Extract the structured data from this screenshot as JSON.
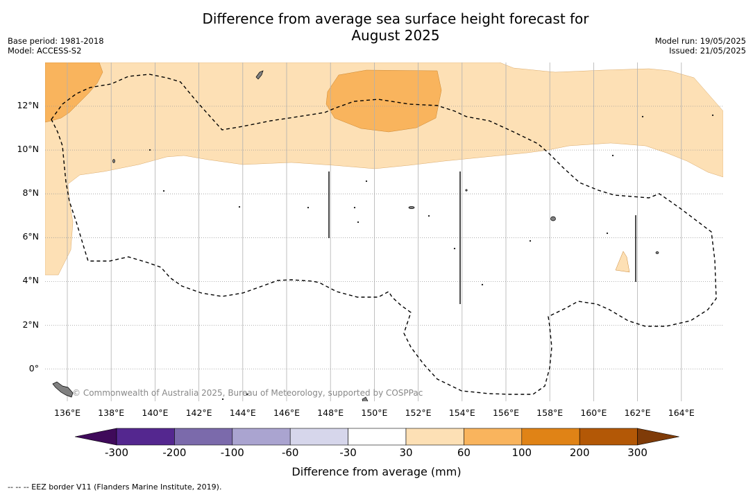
{
  "header": {
    "title_line1": "Difference from average sea surface height forecast for",
    "title_line2": "August 2025",
    "base_period": "Base period: 1981-2018",
    "model": "Model: ACCESS-S2",
    "model_run": "Model run: 19/05/2025",
    "issued": "Issued: 21/05/2025"
  },
  "map": {
    "lat_labels": [
      "12°N",
      "10°N",
      "8°N",
      "6°N",
      "4°N",
      "2°N",
      "0°"
    ],
    "lon_labels": [
      "136°E",
      "138°E",
      "140°E",
      "142°E",
      "144°E",
      "146°E",
      "148°E",
      "150°E",
      "152°E",
      "154°E",
      "156°E",
      "158°E",
      "160°E",
      "162°E",
      "164°E"
    ],
    "credit": "© Commonwealth of Australia 2025, Bureau of Meteorology, supported by COSPPac",
    "ocean_color": "#ffffff",
    "land_color": "#808080"
  },
  "colorbar": {
    "label": "Difference from average (mm)",
    "ticks": [
      "-300",
      "-200",
      "-100",
      "-60",
      "-30",
      "30",
      "60",
      "100",
      "200",
      "300"
    ],
    "colors": [
      "#3f0a5a",
      "#54278f",
      "#7b6aab",
      "#aaa4d0",
      "#d6d6eb",
      "#ffffff",
      "#fde0b5",
      "#f9b45d",
      "#e08316",
      "#b35806",
      "#7f3b08"
    ]
  },
  "footnote": "-- -- -- EEZ border V11 (Flanders Marine Institute, 2019)."
}
